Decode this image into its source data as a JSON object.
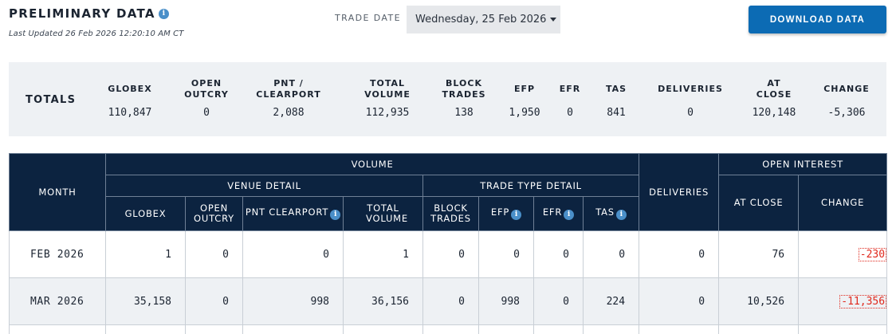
{
  "header": {
    "title": "PRELIMINARY DATA",
    "info_icon": "i",
    "last_updated": "Last Updated 26 Feb 2026 12:20:10 AM CT",
    "trade_date_label": "TRADE DATE",
    "trade_date_value": "Wednesday, 25 Feb 2026",
    "download_label": "DOWNLOAD DATA"
  },
  "totals": {
    "label": "TOTALS",
    "columns": [
      {
        "head": "GLOBEX",
        "value": "110,847"
      },
      {
        "head": "OPEN OUTCRY",
        "value": "0"
      },
      {
        "head": "PNT / CLEARPORT",
        "value": "2,088"
      },
      {
        "head": "TOTAL VOLUME",
        "value": "112,935"
      },
      {
        "head": "BLOCK TRADES",
        "value": "138"
      },
      {
        "head": "EFP",
        "value": "1,950"
      },
      {
        "head": "EFR",
        "value": "0"
      },
      {
        "head": "TAS",
        "value": "841"
      },
      {
        "head": "DELIVERIES",
        "value": "0"
      },
      {
        "head": "AT CLOSE",
        "value": "120,148"
      },
      {
        "head": "CHANGE",
        "value": "-5,306"
      }
    ]
  },
  "table": {
    "headers": {
      "month": "MONTH",
      "volume": "VOLUME",
      "venue_detail": "VENUE DETAIL",
      "trade_type_detail": "TRADE TYPE DETAIL",
      "deliveries": "DELIVERIES",
      "open_interest": "OPEN INTEREST",
      "globex": "GLOBEX",
      "open_outcry": "OPEN OUTCRY",
      "pnt_clearport": "PNT CLEARPORT",
      "total_volume": "TOTAL VOLUME",
      "block_trades": "BLOCK TRADES",
      "efp": "EFP",
      "efr": "EFR",
      "tas": "TAS",
      "at_close": "AT CLOSE",
      "change": "CHANGE"
    },
    "rows": [
      {
        "month": "FEB 2026",
        "globex": "1",
        "open_outcry": "0",
        "pnt_clearport": "0",
        "total_volume": "1",
        "block_trades": "0",
        "efp": "0",
        "efr": "0",
        "tas": "0",
        "deliveries": "0",
        "at_close": "76",
        "change": "-230"
      },
      {
        "month": "MAR 2026",
        "globex": "35,158",
        "open_outcry": "0",
        "pnt_clearport": "998",
        "total_volume": "36,156",
        "block_trades": "0",
        "efp": "998",
        "efr": "0",
        "tas": "224",
        "deliveries": "0",
        "at_close": "10,526",
        "change": "-11,356"
      }
    ]
  },
  "colors": {
    "navy_header": "#0c2340",
    "accent_blue": "#0c6bb4",
    "negative_red": "#e0281c",
    "panel_gray": "#eef1f4"
  }
}
